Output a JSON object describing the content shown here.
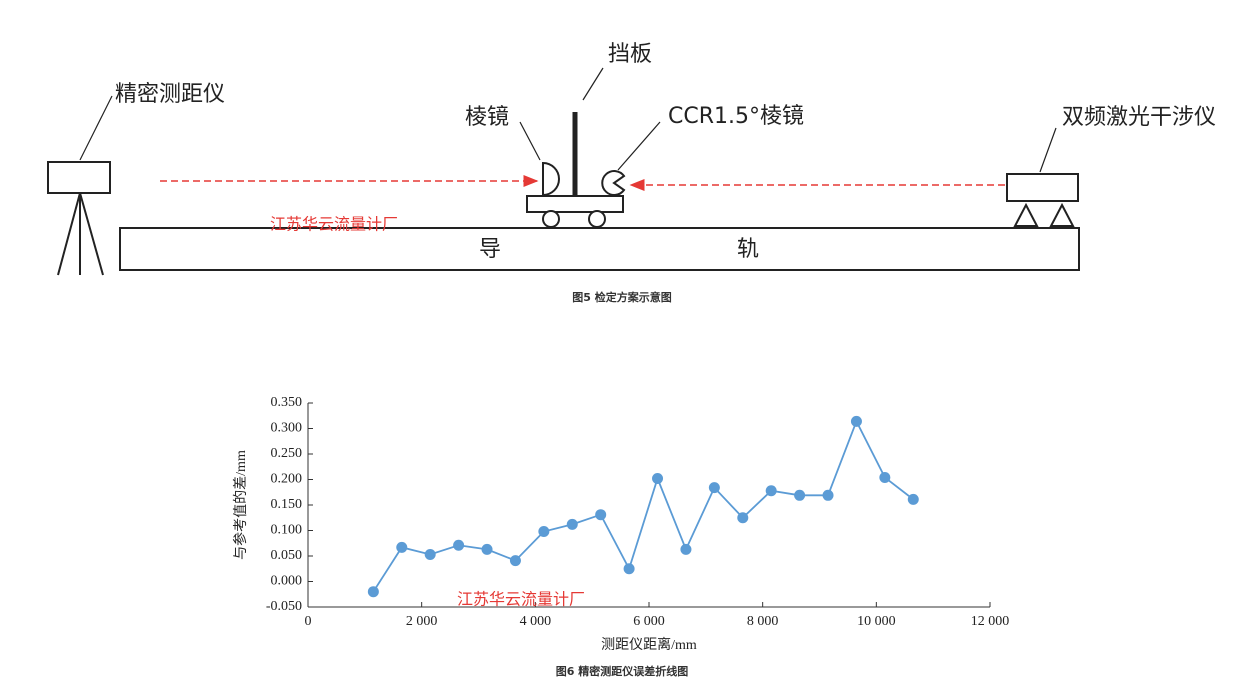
{
  "diagram": {
    "rangefinder": "精密测距仪",
    "baffle": "挡板",
    "prism": "棱镜",
    "ccr_prism": "CCR1.5°棱镜",
    "interferometer": "双频激光干涉仪",
    "rail_left": "导",
    "rail_right": "轨",
    "caption": "图5 检定方案示意图"
  },
  "watermark": "江苏华云流量计厂",
  "chart_data": {
    "type": "line",
    "title": "图6 精密测距仪误差折线图",
    "x_label": "测距仪距离/mm",
    "y_label": "与参考值的差/mm",
    "color": "#5b9bd5",
    "x": [
      1150,
      1650,
      2150,
      2650,
      3150,
      3650,
      4150,
      4650,
      5150,
      5650,
      6150,
      6650,
      7150,
      7650,
      8150,
      8650,
      9150,
      9650,
      10150,
      10650
    ],
    "values": [
      -0.02,
      0.067,
      0.053,
      0.071,
      0.063,
      0.041,
      0.098,
      0.112,
      0.131,
      0.025,
      0.202,
      0.063,
      0.184,
      0.125,
      0.178,
      0.169,
      0.169,
      0.314,
      0.204,
      0.161
    ],
    "xlim": [
      0,
      12000
    ],
    "ylim": [
      -0.05,
      0.35
    ],
    "xticks": [
      0,
      {
        "value": 2000,
        "label": "2 000"
      },
      {
        "value": 4000,
        "label": "4 000"
      },
      {
        "value": 6000,
        "label": "6 000"
      },
      {
        "value": 8000,
        "label": "8 000"
      },
      {
        "value": 10000,
        "label": "10 000"
      },
      {
        "value": 12000,
        "label": "12 000"
      }
    ],
    "yticks": [
      {
        "value": -0.05,
        "label": "-0.050"
      },
      {
        "value": 0,
        "label": "0.000"
      },
      {
        "value": 0.05,
        "label": "0.050"
      },
      {
        "value": 0.1,
        "label": "0.100"
      },
      {
        "value": 0.15,
        "label": "0.150"
      },
      {
        "value": 0.2,
        "label": "0.200"
      },
      {
        "value": 0.25,
        "label": "0.250"
      },
      {
        "value": 0.3,
        "label": "0.300"
      },
      {
        "value": 0.35,
        "label": "0.350"
      }
    ]
  }
}
